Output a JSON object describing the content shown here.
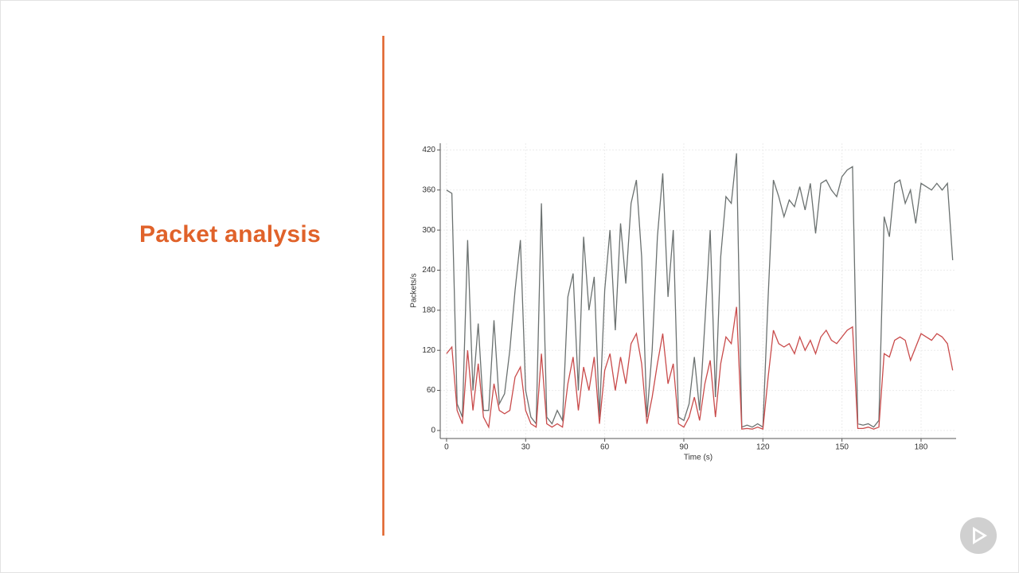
{
  "slide_title": "Packet analysis",
  "chart_data": {
    "type": "line",
    "xlabel": "Time (s)",
    "ylabel": "Packets/s",
    "xlim": [
      -2.4,
      193.3
    ],
    "ylim": [
      -12,
      430
    ],
    "xticks": [
      0,
      30,
      60,
      90,
      120,
      150,
      180
    ],
    "yticks": [
      0,
      60,
      120,
      180,
      240,
      300,
      360,
      420
    ],
    "grid": true,
    "x": [
      0,
      2,
      4,
      6,
      8,
      10,
      12,
      14,
      16,
      18,
      20,
      22,
      24,
      26,
      28,
      30,
      32,
      34,
      36,
      38,
      40,
      42,
      44,
      46,
      48,
      50,
      52,
      54,
      56,
      58,
      60,
      62,
      64,
      66,
      68,
      70,
      72,
      74,
      76,
      78,
      80,
      82,
      84,
      86,
      88,
      90,
      92,
      94,
      96,
      98,
      100,
      102,
      104,
      106,
      108,
      110,
      112,
      114,
      116,
      118,
      120,
      122,
      124,
      126,
      128,
      130,
      132,
      134,
      136,
      138,
      140,
      142,
      144,
      146,
      148,
      150,
      152,
      154,
      156,
      158,
      160,
      162,
      164,
      166,
      168,
      170,
      172,
      174,
      176,
      178,
      180,
      182,
      184,
      186,
      188,
      190,
      192
    ],
    "series": [
      {
        "color": "#6b7170",
        "values": [
          360,
          355,
          40,
          20,
          285,
          60,
          160,
          30,
          30,
          165,
          40,
          55,
          120,
          210,
          285,
          60,
          20,
          10,
          340,
          20,
          10,
          30,
          15,
          200,
          235,
          60,
          290,
          180,
          230,
          20,
          210,
          300,
          150,
          310,
          220,
          340,
          375,
          260,
          20,
          120,
          290,
          385,
          200,
          300,
          20,
          15,
          40,
          110,
          30,
          160,
          300,
          50,
          260,
          350,
          340,
          415,
          5,
          8,
          5,
          10,
          5,
          200,
          375,
          350,
          320,
          345,
          335,
          365,
          330,
          370,
          295,
          370,
          375,
          360,
          350,
          380,
          390,
          395,
          10,
          8,
          10,
          5,
          15,
          320,
          290,
          370,
          375,
          340,
          360,
          310,
          370,
          365,
          360,
          370,
          360,
          370,
          255
        ]
      },
      {
        "color": "#c94b4b",
        "values": [
          115,
          125,
          30,
          10,
          120,
          30,
          100,
          20,
          5,
          70,
          30,
          25,
          30,
          80,
          95,
          30,
          10,
          5,
          115,
          10,
          5,
          10,
          5,
          70,
          110,
          30,
          95,
          60,
          110,
          10,
          90,
          115,
          60,
          110,
          70,
          130,
          145,
          100,
          10,
          50,
          100,
          145,
          70,
          100,
          10,
          5,
          20,
          50,
          15,
          70,
          105,
          20,
          100,
          140,
          130,
          185,
          2,
          3,
          2,
          5,
          2,
          80,
          150,
          130,
          125,
          130,
          115,
          140,
          120,
          135,
          115,
          140,
          150,
          135,
          130,
          140,
          150,
          155,
          3,
          3,
          5,
          2,
          5,
          115,
          110,
          135,
          140,
          135,
          105,
          125,
          145,
          140,
          135,
          145,
          140,
          130,
          90
        ]
      }
    ]
  }
}
